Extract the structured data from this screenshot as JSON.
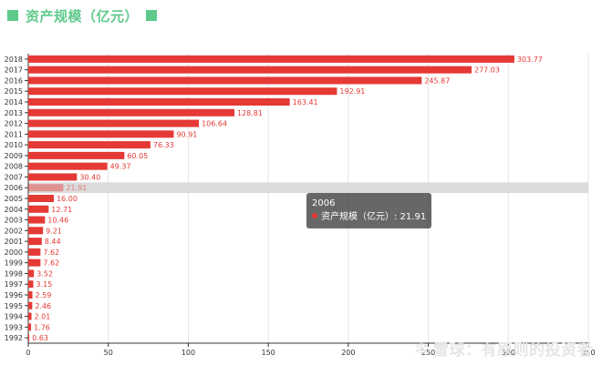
{
  "title": "资产规模（亿元）",
  "colors": {
    "accent": "#5ec98a",
    "bar": "#e53935",
    "label": "#e53935",
    "highlight": "#dcdcdc"
  },
  "chart_data": {
    "type": "bar",
    "orientation": "horizontal",
    "categories": [
      "1992",
      "1993",
      "1994",
      "1995",
      "1996",
      "1997",
      "1998",
      "1999",
      "2000",
      "2001",
      "2002",
      "2003",
      "2004",
      "2005",
      "2006",
      "2007",
      "2008",
      "2009",
      "2010",
      "2011",
      "2012",
      "2013",
      "2014",
      "2015",
      "2016",
      "2017",
      "2018"
    ],
    "series": [
      {
        "name": "资产规模（亿元）",
        "values": [
          0.63,
          1.76,
          2.01,
          2.46,
          2.59,
          3.15,
          3.52,
          7.62,
          7.62,
          8.44,
          9.21,
          10.46,
          12.71,
          16.0,
          21.91,
          30.4,
          49.37,
          60.05,
          76.33,
          90.91,
          106.64,
          128.81,
          163.41,
          192.91,
          245.87,
          277.03,
          303.77
        ],
        "labels": [
          "0.63",
          "1.76",
          "2.01",
          "2.46",
          "2.59",
          "3.15",
          "3.52",
          "7.62",
          "7.62",
          "8.44",
          "9.21",
          "10.46",
          "12.71",
          "16.00",
          "21.91",
          "30.40",
          "49.37",
          "60.05",
          "76.33",
          "90.91",
          "106.64",
          "128.81",
          "163.41",
          "192.91",
          "245.87",
          "277.03",
          "303.77"
        ]
      }
    ],
    "xlim": [
      0,
      350
    ],
    "xticks": [
      "0",
      "50",
      "100",
      "150",
      "200",
      "250",
      "300",
      "350"
    ],
    "grid": true,
    "highlighted_category": "2006"
  },
  "tooltip": {
    "title": "2006",
    "text": "资产规模（亿元）: 21.91"
  },
  "watermark": {
    "logo": "❄",
    "text": "雪球：有原则的投资者"
  }
}
